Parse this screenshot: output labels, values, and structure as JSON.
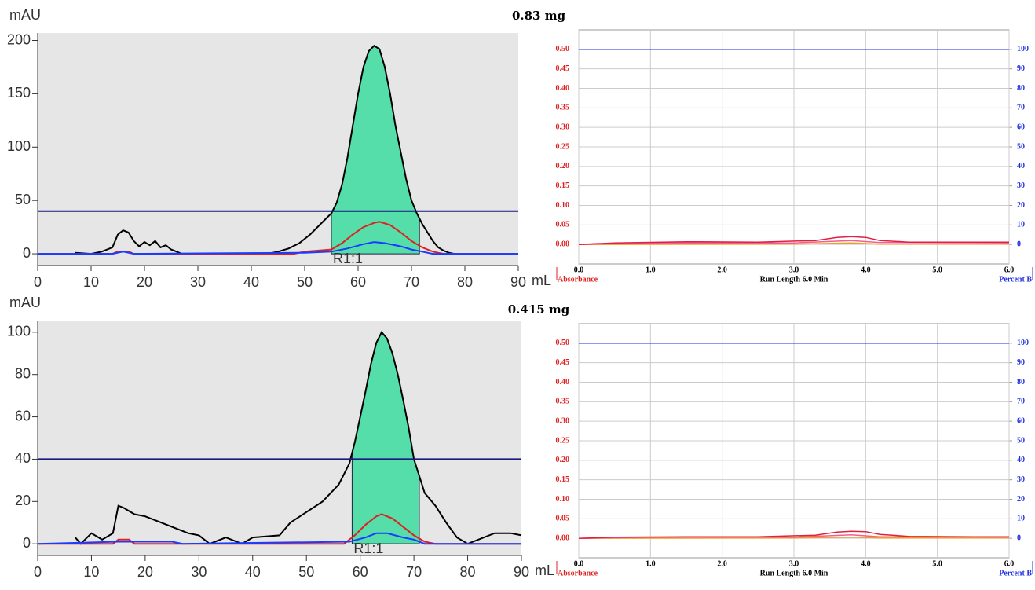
{
  "chart_data": [
    {
      "type": "line",
      "ylabel": "mAU",
      "xlabel": "mL",
      "xlim": [
        0,
        90
      ],
      "xticks": [
        0,
        10,
        20,
        30,
        40,
        50,
        60,
        70,
        80,
        90
      ],
      "ylim": [
        -11,
        207
      ],
      "yticks": [
        0,
        50,
        100,
        150,
        200
      ],
      "fraction": {
        "from": 55,
        "to": 71.5,
        "label": "R1:1",
        "color": "#55ddaa"
      },
      "series": [
        {
          "color": "#000000",
          "x": [
            7,
            10,
            12,
            14,
            15,
            16,
            17,
            18,
            19,
            20,
            21,
            22,
            23,
            24,
            25,
            26,
            27,
            43,
            45,
            47,
            49,
            51,
            53,
            55,
            56,
            57,
            58,
            59,
            60,
            61,
            62,
            63,
            64,
            65,
            66,
            67,
            68,
            69,
            70,
            71,
            72,
            73,
            74,
            75,
            76,
            77,
            78
          ],
          "values": [
            1,
            0,
            2,
            6,
            18,
            22,
            20,
            12,
            7,
            11,
            8,
            12,
            6,
            8,
            4,
            2,
            0,
            0,
            2,
            5,
            10,
            18,
            28,
            38,
            48,
            65,
            90,
            120,
            150,
            175,
            190,
            195,
            192,
            175,
            150,
            120,
            95,
            70,
            50,
            38,
            28,
            20,
            12,
            6,
            3,
            1,
            0
          ]
        },
        {
          "color": "#e02020",
          "x": [
            0,
            14,
            15,
            17,
            18,
            48,
            50,
            55,
            57,
            59,
            61,
            63,
            64,
            66,
            68,
            70,
            72,
            74,
            76,
            90
          ],
          "values": [
            0,
            0,
            2,
            2,
            0,
            0,
            2,
            4,
            10,
            18,
            25,
            29,
            30,
            27,
            20,
            12,
            6,
            2,
            0,
            0
          ]
        },
        {
          "color": "#1a3cff",
          "x": [
            0,
            14,
            15,
            16,
            17,
            18,
            50,
            55,
            58,
            61,
            63,
            65,
            68,
            70,
            72,
            74,
            90
          ],
          "values": [
            0,
            0,
            1,
            2,
            1,
            0,
            1,
            2,
            5,
            9,
            11,
            10,
            7,
            4,
            2,
            0,
            0
          ]
        },
        {
          "color": "#1a1a80",
          "x": [
            0,
            90
          ],
          "values": [
            40,
            40
          ]
        }
      ]
    },
    {
      "type": "line",
      "ylabel": "mAU",
      "xlabel": "mL",
      "xlim": [
        0,
        90
      ],
      "xticks": [
        0,
        10,
        20,
        30,
        40,
        50,
        60,
        70,
        80,
        90
      ],
      "ylim": [
        -5.5,
        105.5
      ],
      "yticks": [
        0,
        20,
        40,
        60,
        80,
        100
      ],
      "fraction": {
        "from": 58.5,
        "to": 71,
        "label": "R1:1",
        "color": "#55ddaa"
      },
      "series": [
        {
          "color": "#000000",
          "x": [
            7,
            8,
            10,
            12,
            14,
            15,
            16,
            18,
            20,
            22,
            24,
            26,
            28,
            30,
            32,
            35,
            38,
            40,
            45,
            47,
            50,
            53,
            56,
            58,
            59,
            60,
            61,
            62,
            63,
            64,
            65,
            66,
            67,
            68,
            69,
            70,
            71,
            72,
            74,
            76,
            78,
            80,
            85,
            88,
            90
          ],
          "values": [
            3,
            0,
            5,
            2,
            5,
            18,
            17,
            14,
            13,
            11,
            9,
            7,
            5,
            4,
            0,
            3,
            0,
            3,
            4,
            10,
            15,
            20,
            28,
            38,
            48,
            60,
            72,
            85,
            95,
            100,
            97,
            90,
            80,
            68,
            55,
            40,
            32,
            24,
            18,
            10,
            3,
            0,
            5,
            5,
            4
          ]
        },
        {
          "color": "#e02020",
          "x": [
            0,
            14,
            15,
            17,
            18,
            57,
            59,
            61,
            63,
            64,
            66,
            68,
            70,
            72,
            74,
            90
          ],
          "values": [
            0,
            0,
            2,
            2,
            0,
            0,
            4,
            9,
            13,
            14,
            12,
            8,
            4,
            1,
            0,
            0
          ]
        },
        {
          "color": "#1a3cff",
          "x": [
            0,
            15,
            25,
            27,
            58,
            61,
            63,
            65,
            68,
            70,
            72,
            90
          ],
          "values": [
            0,
            1,
            1,
            0,
            1,
            3,
            5,
            5,
            3,
            2,
            0,
            0
          ]
        },
        {
          "color": "#1a1a80",
          "x": [
            0,
            90
          ],
          "values": [
            40,
            40
          ]
        }
      ]
    },
    {
      "type": "line",
      "title": "0.83 mg",
      "ylabel": "Absorbance",
      "y2label": "Percent B",
      "xlabel": "Run Length 6.0 Min",
      "grid": true,
      "xlim": [
        0,
        6
      ],
      "xticks": [
        {
          "value": 0,
          "label": "0.0"
        },
        {
          "value": 1,
          "label": "1.0"
        },
        {
          "value": 2,
          "label": "2.0"
        },
        {
          "value": 3,
          "label": "3.0"
        },
        {
          "value": 4,
          "label": "4.0"
        },
        {
          "value": 5,
          "label": "5.0"
        },
        {
          "value": 6,
          "label": "6.0"
        }
      ],
      "ylim": [
        -0.05,
        0.55
      ],
      "yticks": [
        {
          "value": 0,
          "label": "0.00"
        },
        {
          "value": 0.05,
          "label": "0.05"
        },
        {
          "value": 0.1,
          "label": "0.10"
        },
        {
          "value": 0.15,
          "label": "0.15"
        },
        {
          "value": 0.2,
          "label": "0.20"
        },
        {
          "value": 0.25,
          "label": "0.25"
        },
        {
          "value": 0.3,
          "label": "0.30"
        },
        {
          "value": 0.35,
          "label": "0.35"
        },
        {
          "value": 0.4,
          "label": "0.40"
        },
        {
          "value": 0.45,
          "label": "0.45"
        },
        {
          "value": 0.5,
          "label": "0.50"
        }
      ],
      "y2lim": [
        -10,
        110
      ],
      "y2ticks": [
        0,
        10,
        20,
        30,
        40,
        50,
        60,
        70,
        80,
        90,
        100
      ],
      "series": [
        {
          "color": "#2030e0",
          "axis": "y2",
          "x": [
            0,
            6
          ],
          "values": [
            100,
            100
          ]
        },
        {
          "color": "#f0a020",
          "x": [
            0,
            3,
            3.8,
            4.2,
            6
          ],
          "values": [
            0,
            0.001,
            0.004,
            0.001,
            0.001
          ]
        },
        {
          "color": "#f06090",
          "x": [
            0,
            1,
            3,
            3.8,
            4.2,
            6
          ],
          "values": [
            0,
            0.004,
            0.004,
            0.01,
            0.005,
            0.004
          ]
        },
        {
          "color": "#e02040",
          "x": [
            0,
            0.5,
            1.5,
            2.5,
            3.3,
            3.6,
            3.8,
            4,
            4.2,
            4.6,
            5.5,
            6
          ],
          "values": [
            0,
            0.004,
            0.007,
            0.006,
            0.01,
            0.018,
            0.02,
            0.018,
            0.01,
            0.006,
            0.006,
            0.006
          ]
        }
      ]
    },
    {
      "type": "line",
      "title": "0.415 mg",
      "ylabel": "Absorbance",
      "y2label": "Percent B",
      "xlabel": "Run Length 6.0 Min",
      "grid": true,
      "xlim": [
        0,
        6
      ],
      "xticks": [
        {
          "value": 0,
          "label": "0.0"
        },
        {
          "value": 1,
          "label": "1.0"
        },
        {
          "value": 2,
          "label": "2.0"
        },
        {
          "value": 3,
          "label": "3.0"
        },
        {
          "value": 4,
          "label": "4.0"
        },
        {
          "value": 5,
          "label": "5.0"
        },
        {
          "value": 6,
          "label": "6.0"
        }
      ],
      "ylim": [
        -0.05,
        0.55
      ],
      "yticks": [
        {
          "value": 0,
          "label": "0.00"
        },
        {
          "value": 0.05,
          "label": "0.05"
        },
        {
          "value": 0.1,
          "label": "0.10"
        },
        {
          "value": 0.15,
          "label": "0.15"
        },
        {
          "value": 0.2,
          "label": "0.20"
        },
        {
          "value": 0.25,
          "label": "0.25"
        },
        {
          "value": 0.3,
          "label": "0.30"
        },
        {
          "value": 0.35,
          "label": "0.35"
        },
        {
          "value": 0.4,
          "label": "0.40"
        },
        {
          "value": 0.45,
          "label": "0.45"
        },
        {
          "value": 0.5,
          "label": "0.50"
        }
      ],
      "y2lim": [
        -10,
        110
      ],
      "y2ticks": [
        0,
        10,
        20,
        30,
        40,
        50,
        60,
        70,
        80,
        90,
        100
      ],
      "series": [
        {
          "color": "#2030e0",
          "axis": "y2",
          "x": [
            0,
            6
          ],
          "values": [
            100,
            100
          ]
        },
        {
          "color": "#f0a020",
          "x": [
            0,
            3,
            3.8,
            4.2,
            6
          ],
          "values": [
            0,
            0.001,
            0.003,
            0.001,
            0.001
          ]
        },
        {
          "color": "#f06090",
          "x": [
            0,
            1,
            3,
            3.8,
            4.2,
            6
          ],
          "values": [
            0,
            0.003,
            0.003,
            0.009,
            0.004,
            0.003
          ]
        },
        {
          "color": "#e02040",
          "x": [
            0,
            0.5,
            1.5,
            2.5,
            3.3,
            3.6,
            3.8,
            4,
            4.2,
            4.6,
            5.5,
            6
          ],
          "values": [
            0,
            0.003,
            0.004,
            0.004,
            0.008,
            0.016,
            0.018,
            0.017,
            0.01,
            0.005,
            0.004,
            0.004
          ]
        }
      ]
    }
  ]
}
